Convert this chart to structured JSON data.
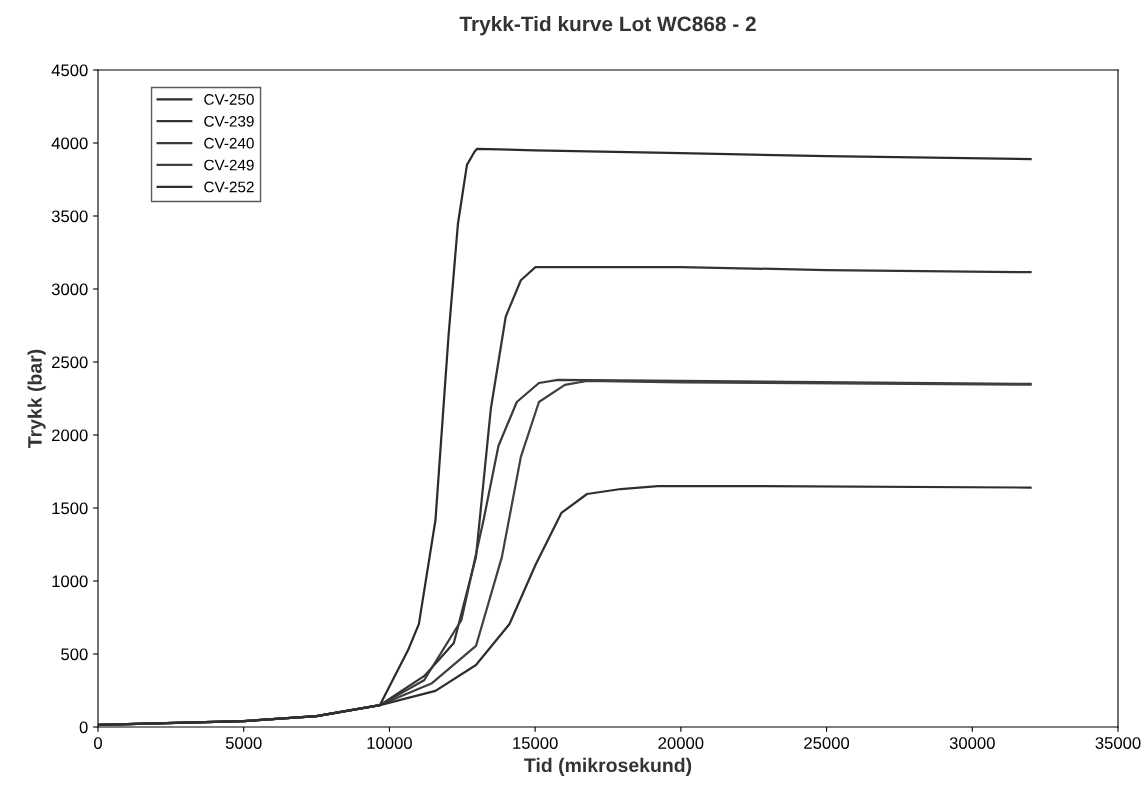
{
  "chart_data": {
    "type": "line",
    "title": "Trykk-Tid kurve Lot WC868 - 2",
    "xlabel": "Tid (mikrosekund)",
    "ylabel": "Trykk (bar)",
    "xlim": [
      0,
      35000
    ],
    "ylim": [
      0,
      4500
    ],
    "xticks": [
      0,
      5000,
      10000,
      15000,
      20000,
      25000,
      30000,
      35000
    ],
    "yticks": [
      0,
      500,
      1000,
      1500,
      2000,
      2500,
      3000,
      3500,
      4000,
      4500
    ],
    "grid": false,
    "legend": "top left",
    "marker": "none",
    "line_style": "solid",
    "series": [
      {
        "name": "CV-250",
        "color": "#2b2b2b",
        "x": [
          0,
          5000,
          7500,
          9675,
          10640,
          11010,
          11580,
          12030,
          12350,
          12660,
          12920,
          13000,
          15000,
          20000,
          25000,
          32000
        ],
        "values": [
          15,
          40,
          75,
          150,
          527,
          705,
          1418,
          2685,
          3445,
          3850,
          3940,
          3960,
          3950,
          3930,
          3910,
          3890
        ]
      },
      {
        "name": "CV-239",
        "color": "#333333",
        "x": [
          0,
          5000,
          7500,
          9675,
          11200,
          12210,
          12970,
          13480,
          13990,
          14510,
          15010,
          20000,
          25000,
          32000
        ],
        "values": [
          15,
          40,
          75,
          150,
          350,
          575,
          1165,
          2180,
          2810,
          3060,
          3150,
          3150,
          3130,
          3115
        ]
      },
      {
        "name": "CV-240",
        "color": "#3a3a3a",
        "x": [
          0,
          5000,
          7500,
          9675,
          11190,
          12470,
          13230,
          13740,
          14370,
          15130,
          15780,
          20000,
          32000
        ],
        "values": [
          15,
          40,
          75,
          150,
          320,
          733,
          1418,
          1925,
          2226,
          2356,
          2377,
          2370,
          2350
        ]
      },
      {
        "name": "CV-249",
        "color": "#404040",
        "x": [
          0,
          5000,
          7500,
          9675,
          11460,
          12970,
          13860,
          14510,
          15130,
          16020,
          16780,
          20000,
          32000
        ],
        "values": [
          15,
          40,
          75,
          150,
          300,
          555,
          1165,
          1850,
          2226,
          2343,
          2370,
          2360,
          2345
        ]
      },
      {
        "name": "CV-252",
        "color": "#2f2f2f",
        "x": [
          0,
          5000,
          7500,
          9675,
          11580,
          12970,
          14120,
          15010,
          15900,
          16780,
          17940,
          19210,
          22000,
          32000
        ],
        "values": [
          15,
          40,
          75,
          150,
          247,
          425,
          705,
          1110,
          1466,
          1596,
          1630,
          1650,
          1650,
          1640
        ]
      }
    ]
  }
}
